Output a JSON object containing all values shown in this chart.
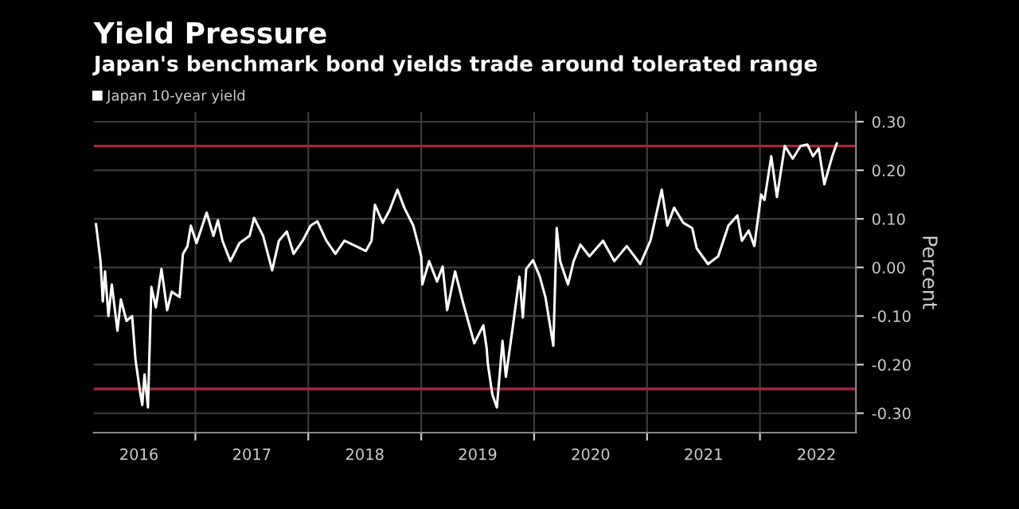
{
  "chart_data": {
    "type": "line",
    "title": "Yield Pressure",
    "subtitle": "Japan's benchmark bond yields trade around tolerated range",
    "ylabel": "Percent",
    "x": [
      2016.12,
      2016.16,
      2016.18,
      2016.2,
      2016.23,
      2016.26,
      2016.31,
      2016.34,
      2016.39,
      2016.44,
      2016.47,
      2016.51,
      2016.53,
      2016.55,
      2016.58,
      2016.61,
      2016.65,
      2016.7,
      2016.75,
      2016.79,
      2016.86,
      2016.89,
      2016.93,
      2016.96,
      2017.01,
      2017.1,
      2017.16,
      2017.2,
      2017.24,
      2017.31,
      2017.39,
      2017.48,
      2017.52,
      2017.6,
      2017.68,
      2017.74,
      2017.81,
      2017.87,
      2017.95,
      2018.02,
      2018.08,
      2018.16,
      2018.24,
      2018.32,
      2018.42,
      2018.51,
      2018.56,
      2018.59,
      2018.66,
      2018.72,
      2018.79,
      2018.85,
      2018.93,
      2019.0,
      2019.01,
      2019.07,
      2019.14,
      2019.19,
      2019.23,
      2019.3,
      2019.37,
      2019.47,
      2019.55,
      2019.58,
      2019.59,
      2019.63,
      2019.67,
      2019.72,
      2019.75,
      2019.81,
      2019.87,
      2019.9,
      2019.93,
      2019.99,
      2020.05,
      2020.1,
      2020.17,
      2020.2,
      2020.23,
      2020.3,
      2020.35,
      2020.41,
      2020.49,
      2020.61,
      2020.71,
      2020.82,
      2020.94,
      2021.03,
      2021.13,
      2021.18,
      2021.24,
      2021.32,
      2021.4,
      2021.44,
      2021.54,
      2021.63,
      2021.72,
      2021.8,
      2021.84,
      2021.9,
      2021.95,
      2022.01,
      2022.04,
      2022.1,
      2022.15,
      2022.22,
      2022.29,
      2022.36,
      2022.42,
      2022.47,
      2022.52,
      2022.57,
      2022.64,
      2022.68
    ],
    "series": [
      {
        "name": "Japan 10-year yield",
        "color": "#ffffff",
        "values": [
          0.089,
          0.013,
          -0.07,
          -0.008,
          -0.1,
          -0.035,
          -0.13,
          -0.066,
          -0.11,
          -0.1,
          -0.19,
          -0.256,
          -0.283,
          -0.22,
          -0.288,
          -0.04,
          -0.082,
          -0.003,
          -0.088,
          -0.05,
          -0.061,
          0.028,
          0.044,
          0.086,
          0.05,
          0.113,
          0.065,
          0.097,
          0.055,
          0.013,
          0.05,
          0.065,
          0.102,
          0.065,
          -0.006,
          0.055,
          0.074,
          0.028,
          0.055,
          0.086,
          0.095,
          0.055,
          0.028,
          0.055,
          0.044,
          0.034,
          0.055,
          0.129,
          0.092,
          0.118,
          0.16,
          0.123,
          0.086,
          0.023,
          -0.035,
          0.013,
          -0.029,
          0.002,
          -0.088,
          -0.008,
          -0.072,
          -0.156,
          -0.119,
          -0.167,
          -0.198,
          -0.262,
          -0.288,
          -0.151,
          -0.225,
          -0.124,
          -0.019,
          -0.103,
          -0.003,
          0.015,
          -0.019,
          -0.061,
          -0.161,
          0.081,
          0.013,
          -0.035,
          0.013,
          0.047,
          0.023,
          0.055,
          0.013,
          0.044,
          0.007,
          0.055,
          0.16,
          0.086,
          0.123,
          0.092,
          0.081,
          0.039,
          0.007,
          0.023,
          0.086,
          0.107,
          0.055,
          0.076,
          0.044,
          0.15,
          0.139,
          0.229,
          0.145,
          0.25,
          0.224,
          0.25,
          0.253,
          0.229,
          0.245,
          0.171,
          0.229,
          0.255
        ]
      }
    ],
    "xlim": [
      2016.1,
      2022.85
    ],
    "xticks": [
      {
        "value": 2016.5,
        "label": "2016"
      },
      {
        "value": 2017,
        "label": null
      },
      {
        "value": 2017.5,
        "label": "2017"
      },
      {
        "value": 2018,
        "label": null
      },
      {
        "value": 2018.5,
        "label": "2018"
      },
      {
        "value": 2019,
        "label": null
      },
      {
        "value": 2019.5,
        "label": "2019"
      },
      {
        "value": 2020,
        "label": null
      },
      {
        "value": 2020.5,
        "label": "2020"
      },
      {
        "value": 2021,
        "label": null
      },
      {
        "value": 2021.5,
        "label": "2021"
      },
      {
        "value": 2022,
        "label": null
      },
      {
        "value": 2022.5,
        "label": "2022"
      }
    ],
    "ylim": [
      -0.34,
      0.32
    ],
    "yticks": [
      {
        "value": -0.3,
        "label": "-0.30"
      },
      {
        "value": -0.2,
        "label": "-0.20"
      },
      {
        "value": -0.1,
        "label": "-0.10"
      },
      {
        "value": 0,
        "label": "0.00"
      },
      {
        "value": 0.1,
        "label": "0.10"
      },
      {
        "value": 0.2,
        "label": "0.20"
      },
      {
        "value": 0.3,
        "label": "0.30"
      }
    ],
    "ref_lines": [
      {
        "axis": "y",
        "value": 0.25,
        "label": null,
        "color": "#a0283c"
      },
      {
        "axis": "y",
        "value": -0.25,
        "label": null,
        "color": "#a0283c"
      }
    ],
    "grid": true,
    "legend": "top left",
    "marker": "none",
    "line_style": "solid"
  }
}
